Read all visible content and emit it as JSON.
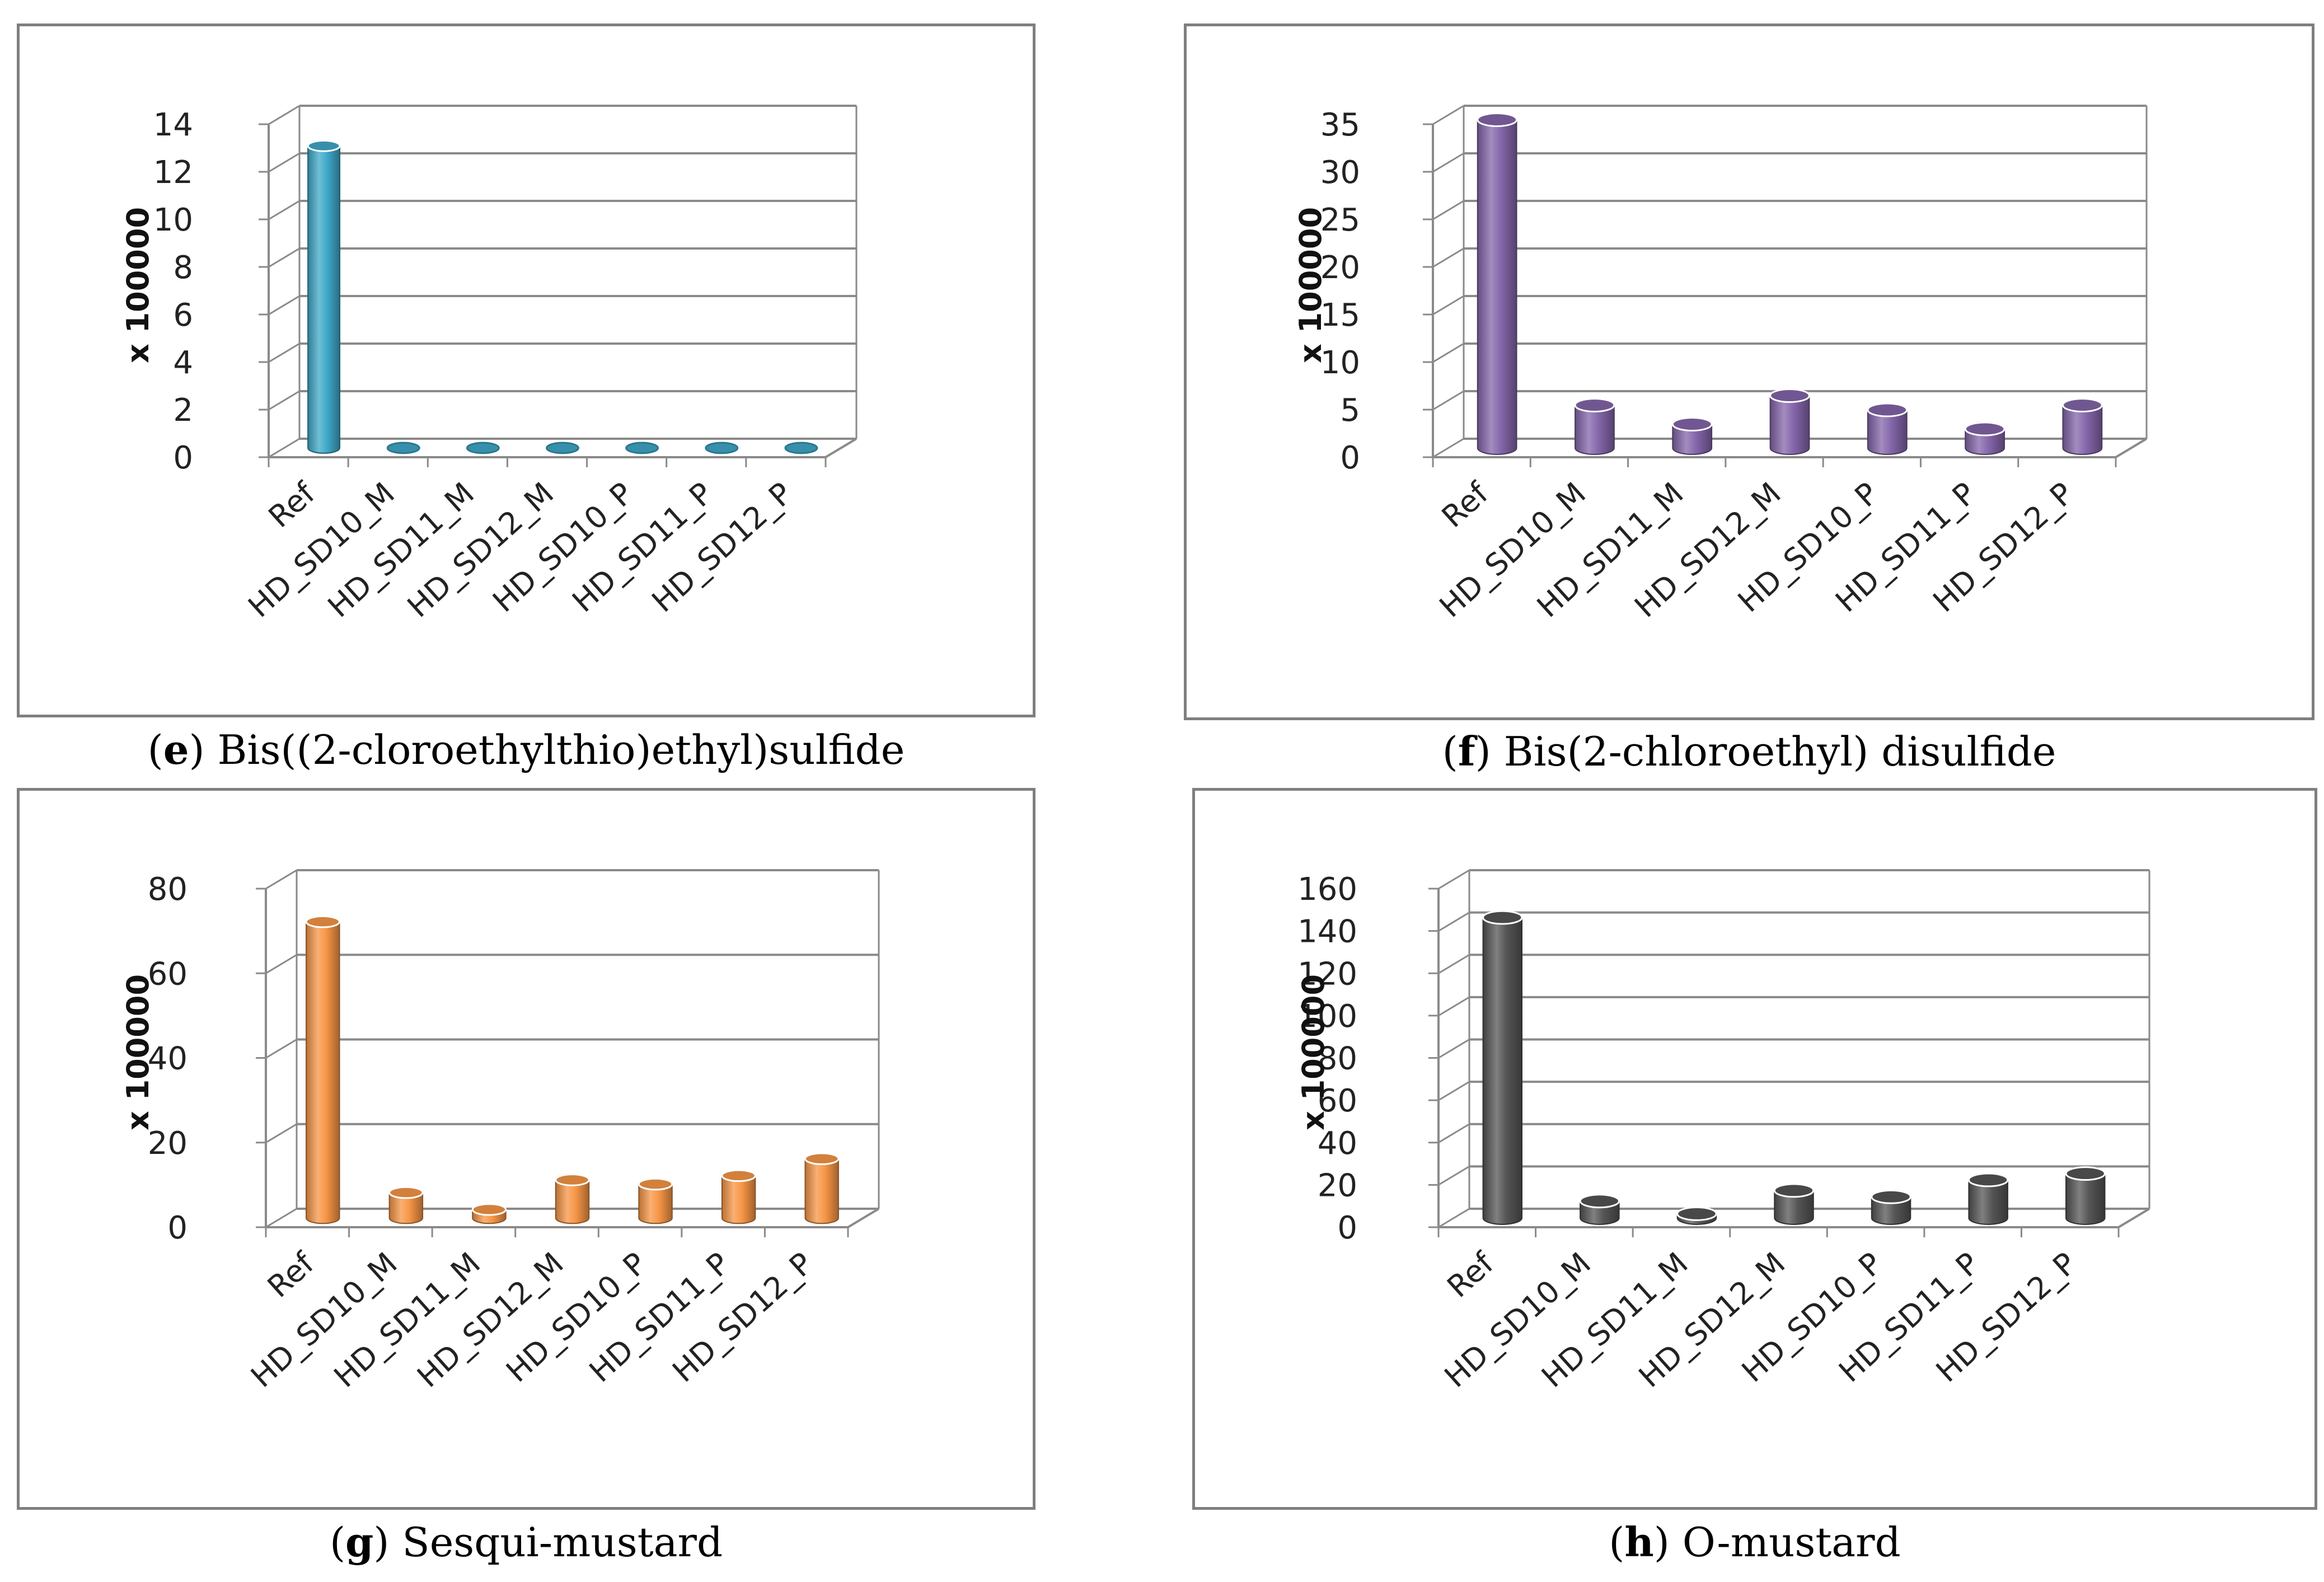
{
  "charts": [
    {
      "caption_letter": "e",
      "caption_text": "Bis((2-cloroethylthio)ethyl)sulfide",
      "color": "#3fa9c9",
      "chart_data": {
        "type": "bar",
        "title": "",
        "ylabel": "x 100000",
        "xlabel": "",
        "categories": [
          "Ref",
          "HD_SD10_M",
          "HD_SD11_M",
          "HD_SD12_M",
          "HD_SD10_P",
          "HD_SD11_P",
          "HD_SD12_P"
        ],
        "values": [
          12.7,
          0,
          0,
          0,
          0,
          0,
          0
        ],
        "ylim": [
          0,
          14
        ],
        "yticks": [
          "0",
          "2",
          "4",
          "6",
          "8",
          "10",
          "12",
          "14"
        ]
      }
    },
    {
      "caption_letter": "f",
      "caption_text": "Bis(2-chloroethyl) disulfide",
      "color": "#8466aa",
      "chart_data": {
        "type": "bar",
        "title": "",
        "ylabel": "x 100000",
        "xlabel": "",
        "categories": [
          "Ref",
          "HD_SD10_M",
          "HD_SD11_M",
          "HD_SD12_M",
          "HD_SD10_P",
          "HD_SD11_P",
          "HD_SD12_P"
        ],
        "values": [
          34.5,
          4.5,
          2.5,
          5.5,
          4.0,
          2.0,
          4.5
        ],
        "ylim": [
          0,
          35
        ],
        "yticks": [
          "0",
          "5",
          "10",
          "15",
          "20",
          "25",
          "30",
          "35"
        ]
      }
    },
    {
      "caption_letter": "g",
      "caption_text": "Sesqui-mustard",
      "color": "#f79646",
      "chart_data": {
        "type": "bar",
        "title": "",
        "ylabel": "x 100000",
        "xlabel": "",
        "categories": [
          "Ref",
          "HD_SD10_M",
          "HD_SD11_M",
          "HD_SD12_M",
          "HD_SD10_P",
          "HD_SD11_P",
          "HD_SD12_P"
        ],
        "values": [
          70,
          6,
          2,
          9,
          8,
          10,
          14
        ],
        "ylim": [
          0,
          80
        ],
        "yticks": [
          "0",
          "20",
          "40",
          "60",
          "80"
        ]
      }
    },
    {
      "caption_letter": "h",
      "caption_text": "O-mustard",
      "color": "#555555",
      "chart_data": {
        "type": "bar",
        "title": "",
        "ylabel": "x 100000",
        "xlabel": "",
        "categories": [
          "Ref",
          "HD_SD10_M",
          "HD_SD11_M",
          "HD_SD12_M",
          "HD_SD10_P",
          "HD_SD11_P",
          "HD_SD12_P"
        ],
        "values": [
          142,
          8,
          2,
          13,
          10,
          18,
          21
        ],
        "ylim": [
          0,
          160
        ],
        "yticks": [
          "0",
          "20",
          "40",
          "60",
          "80",
          "100",
          "120",
          "140",
          "160"
        ]
      }
    }
  ]
}
